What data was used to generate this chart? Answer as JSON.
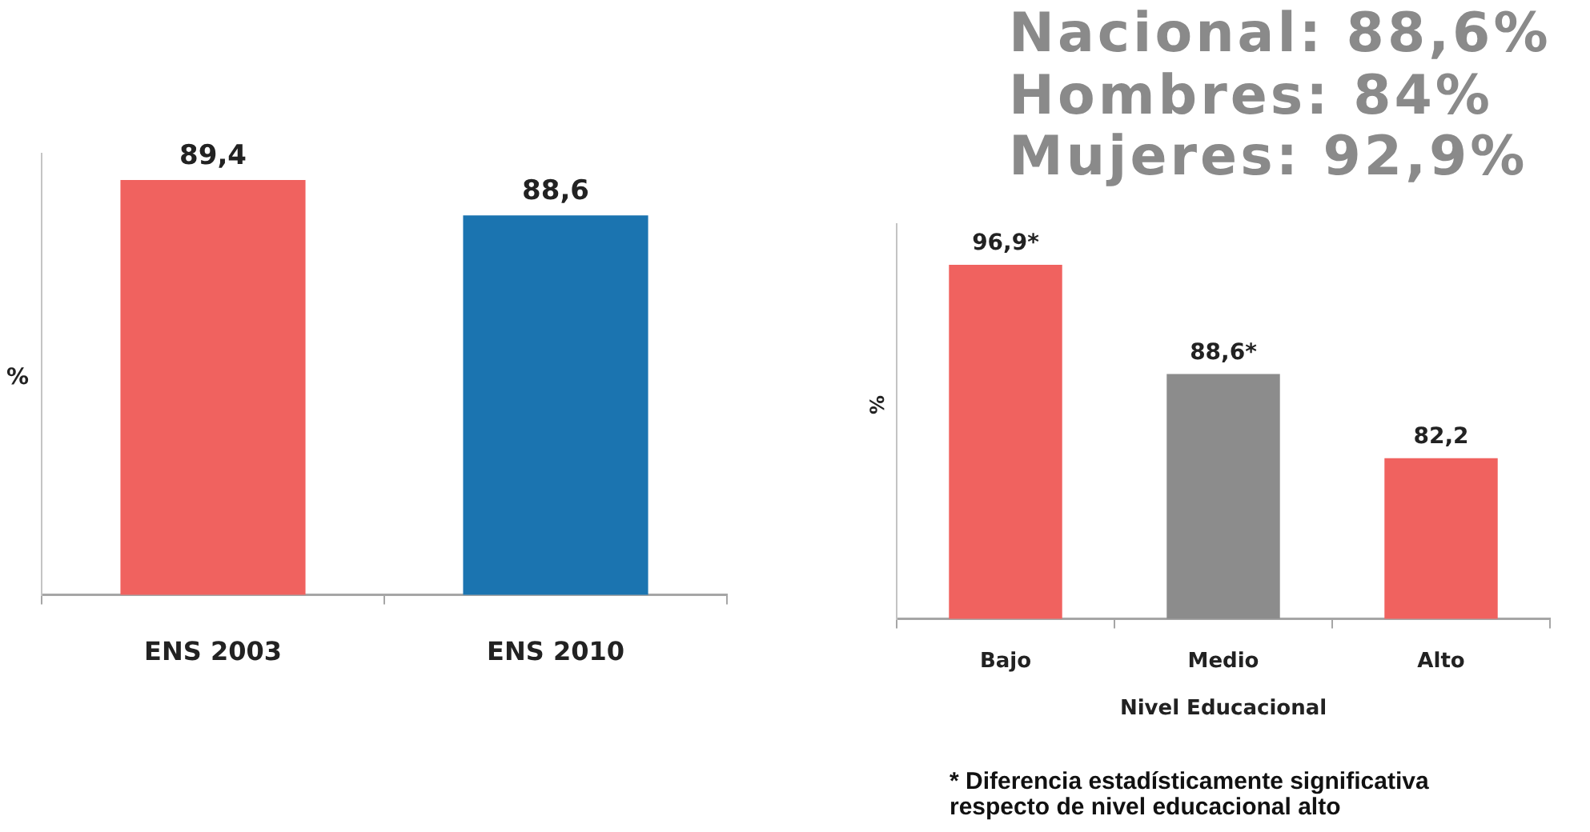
{
  "chart_data": [
    {
      "type": "bar",
      "ylabel": "%",
      "categories": [
        "ENS 2003",
        "ENS 2010"
      ],
      "values": [
        89.4,
        88.6
      ],
      "colors": [
        "#f0625f",
        "#1b74b0"
      ],
      "value_labels": [
        "89,4",
        "88,6"
      ],
      "ylim": [
        80,
        90
      ],
      "tick_labels": "x"
    },
    {
      "type": "bar",
      "ylabel": "%",
      "xlabel": "Nivel Educacional",
      "categories": [
        "Bajo",
        "Medio",
        "Alto"
      ],
      "values": [
        96.9,
        88.6,
        82.2
      ],
      "colors": [
        "#f0625f",
        "#8c8c8c",
        "#f0625f"
      ],
      "value_labels": [
        "96,9*",
        "88,6*",
        "82,2"
      ],
      "ylim": [
        70,
        100
      ],
      "tick_labels": "x",
      "annotations": [
        "Nacional: 88,6%",
        "Hombres: 84%",
        "Mujeres: 92,9%",
        "* Diferencia estadísticamente significativa respecto de nivel educacional alto"
      ]
    }
  ]
}
